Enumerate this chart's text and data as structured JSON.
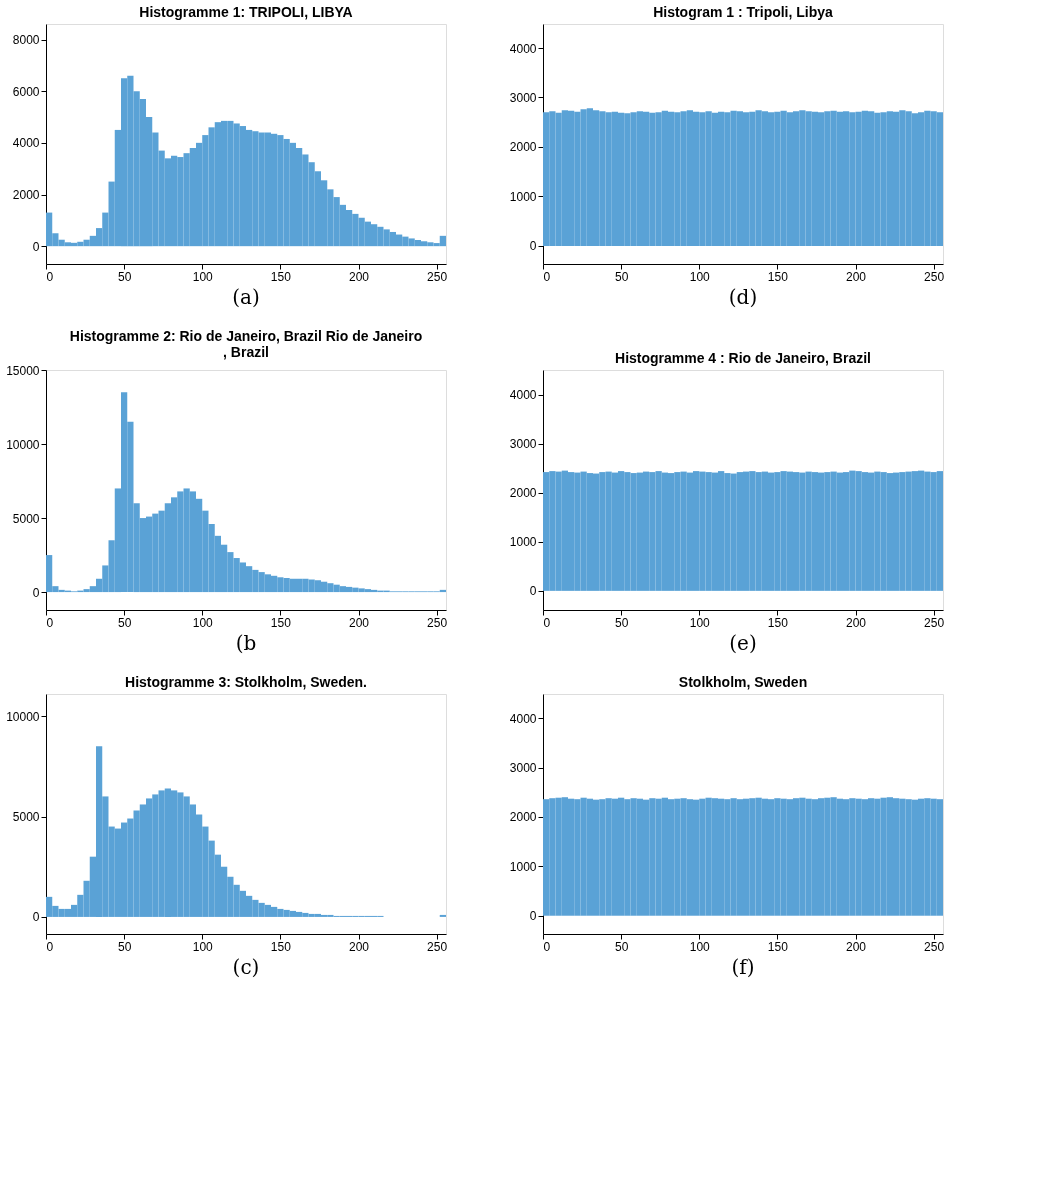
{
  "chart_data": [
    {
      "type": "histogram",
      "title": "Histogramme 1: TRIPOLI, LIBYA",
      "annotations": [
        "(a)"
      ],
      "color": "#5aa2d6",
      "xlim": [
        0,
        256
      ],
      "ylim": [
        -690,
        8600
      ],
      "xticks": [
        0,
        50,
        100,
        150,
        200,
        250
      ],
      "yticks": [
        0,
        2000,
        4000,
        6000,
        8000
      ],
      "grid": false,
      "bins": [
        0,
        4,
        8,
        12,
        16,
        20,
        24,
        28,
        32,
        36,
        40,
        44,
        48,
        52,
        56,
        60,
        64,
        68,
        72,
        76,
        80,
        84,
        88,
        92,
        96,
        100,
        104,
        108,
        112,
        116,
        120,
        124,
        128,
        132,
        136,
        140,
        144,
        148,
        152,
        156,
        160,
        164,
        168,
        172,
        176,
        180,
        184,
        188,
        192,
        196,
        200,
        204,
        208,
        212,
        216,
        220,
        224,
        228,
        232,
        236,
        240,
        244,
        248,
        252,
        256
      ],
      "values": [
        1300,
        500,
        250,
        150,
        130,
        170,
        250,
        400,
        700,
        1300,
        2500,
        4500,
        6500,
        6600,
        6000,
        5700,
        5000,
        4400,
        3700,
        3400,
        3500,
        3450,
        3600,
        3800,
        4000,
        4300,
        4600,
        4800,
        4850,
        4850,
        4750,
        4650,
        4500,
        4450,
        4400,
        4400,
        4350,
        4300,
        4150,
        4000,
        3800,
        3550,
        3250,
        2900,
        2550,
        2200,
        1900,
        1600,
        1400,
        1250,
        1100,
        950,
        850,
        750,
        650,
        550,
        450,
        370,
        300,
        240,
        190,
        150,
        120,
        400
      ]
    },
    {
      "type": "histogram",
      "title": "Histogram 1 : Tripoli, Libya",
      "annotations": [
        "(d)"
      ],
      "color": "#5aa2d6",
      "xlim": [
        0,
        256
      ],
      "ylim": [
        -365,
        4485
      ],
      "xticks": [
        0,
        50,
        100,
        150,
        200,
        250
      ],
      "yticks": [
        0,
        1000,
        2000,
        3000,
        4000
      ],
      "grid": false,
      "bins": [
        0,
        4,
        8,
        12,
        16,
        20,
        24,
        28,
        32,
        36,
        40,
        44,
        48,
        52,
        56,
        60,
        64,
        68,
        72,
        76,
        80,
        84,
        88,
        92,
        96,
        100,
        104,
        108,
        112,
        116,
        120,
        124,
        128,
        132,
        136,
        140,
        144,
        148,
        152,
        156,
        160,
        164,
        168,
        172,
        176,
        180,
        184,
        188,
        192,
        196,
        200,
        204,
        208,
        212,
        216,
        220,
        224,
        228,
        232,
        236,
        240,
        244,
        248,
        252,
        256
      ],
      "values": [
        2700,
        2720,
        2690,
        2740,
        2730,
        2710,
        2760,
        2780,
        2740,
        2720,
        2700,
        2710,
        2690,
        2680,
        2700,
        2720,
        2710,
        2690,
        2700,
        2730,
        2710,
        2700,
        2720,
        2740,
        2710,
        2700,
        2720,
        2690,
        2710,
        2700,
        2730,
        2720,
        2700,
        2710,
        2740,
        2720,
        2700,
        2710,
        2730,
        2700,
        2720,
        2740,
        2720,
        2710,
        2700,
        2720,
        2730,
        2710,
        2720,
        2700,
        2710,
        2730,
        2720,
        2690,
        2700,
        2720,
        2710,
        2740,
        2720,
        2680,
        2700,
        2730,
        2720,
        2700
      ]
    },
    {
      "type": "histogram",
      "title": "Histogramme 2: Rio de Janeiro, Brazil Rio de Janeiro\n, Brazil",
      "annotations": [
        "(b"
      ],
      "color": "#5aa2d6",
      "xlim": [
        0,
        256
      ],
      "ylim": [
        -1210,
        15000
      ],
      "xticks": [
        0,
        50,
        100,
        150,
        200,
        250
      ],
      "yticks": [
        0,
        5000,
        10000,
        15000
      ],
      "grid": false,
      "bins": [
        0,
        4,
        8,
        12,
        16,
        20,
        24,
        28,
        32,
        36,
        40,
        44,
        48,
        52,
        56,
        60,
        64,
        68,
        72,
        76,
        80,
        84,
        88,
        92,
        96,
        100,
        104,
        108,
        112,
        116,
        120,
        124,
        128,
        132,
        136,
        140,
        144,
        148,
        152,
        156,
        160,
        164,
        168,
        172,
        176,
        180,
        184,
        188,
        192,
        196,
        200,
        204,
        208,
        212,
        216,
        220,
        224,
        228,
        232,
        236,
        240,
        244,
        248,
        252,
        256
      ],
      "values": [
        2500,
        400,
        150,
        100,
        50,
        100,
        200,
        400,
        900,
        1800,
        3500,
        7000,
        13500,
        11500,
        6000,
        5000,
        5100,
        5300,
        5500,
        6000,
        6400,
        6800,
        7000,
        6800,
        6300,
        5500,
        4600,
        3800,
        3200,
        2700,
        2300,
        2000,
        1750,
        1500,
        1350,
        1200,
        1100,
        1000,
        950,
        900,
        900,
        900,
        850,
        800,
        700,
        600,
        500,
        400,
        350,
        300,
        250,
        200,
        150,
        100,
        100,
        50,
        50,
        50,
        50,
        50,
        50,
        50,
        50,
        150
      ]
    },
    {
      "type": "histogram",
      "title": "Histogramme 4 : Rio de Janeiro, Brazil",
      "annotations": [
        "(e)"
      ],
      "color": "#5aa2d6",
      "xlim": [
        0,
        256
      ],
      "ylim": [
        -390,
        4500
      ],
      "xticks": [
        0,
        50,
        100,
        150,
        200,
        250
      ],
      "yticks": [
        0,
        1000,
        2000,
        3000,
        4000
      ],
      "grid": false,
      "bins": [
        0,
        4,
        8,
        12,
        16,
        20,
        24,
        28,
        32,
        36,
        40,
        44,
        48,
        52,
        56,
        60,
        64,
        68,
        72,
        76,
        80,
        84,
        88,
        92,
        96,
        100,
        104,
        108,
        112,
        116,
        120,
        124,
        128,
        132,
        136,
        140,
        144,
        148,
        152,
        156,
        160,
        164,
        168,
        172,
        176,
        180,
        184,
        188,
        192,
        196,
        200,
        204,
        208,
        212,
        216,
        220,
        224,
        228,
        232,
        236,
        240,
        244,
        248,
        252,
        256
      ],
      "values": [
        2420,
        2440,
        2430,
        2450,
        2420,
        2410,
        2430,
        2400,
        2390,
        2420,
        2430,
        2410,
        2440,
        2420,
        2400,
        2410,
        2430,
        2420,
        2440,
        2410,
        2400,
        2420,
        2430,
        2410,
        2440,
        2430,
        2420,
        2410,
        2440,
        2400,
        2390,
        2420,
        2430,
        2440,
        2420,
        2430,
        2410,
        2420,
        2440,
        2430,
        2420,
        2410,
        2430,
        2420,
        2410,
        2420,
        2430,
        2410,
        2420,
        2450,
        2440,
        2420,
        2410,
        2430,
        2420,
        2400,
        2410,
        2420,
        2430,
        2440,
        2450,
        2430,
        2420,
        2440
      ]
    },
    {
      "type": "histogram",
      "title": "Histogramme 3: Stolkholm, Sweden.",
      "annotations": [
        "(c)"
      ],
      "color": "#5aa2d6",
      "xlim": [
        0,
        256
      ],
      "ylim": [
        -850,
        11100
      ],
      "xticks": [
        0,
        50,
        100,
        150,
        200,
        250
      ],
      "yticks": [
        0,
        5000,
        10000
      ],
      "grid": false,
      "bins": [
        0,
        4,
        8,
        12,
        16,
        20,
        24,
        28,
        32,
        36,
        40,
        44,
        48,
        52,
        56,
        60,
        64,
        68,
        72,
        76,
        80,
        84,
        88,
        92,
        96,
        100,
        104,
        108,
        112,
        116,
        120,
        124,
        128,
        132,
        136,
        140,
        144,
        148,
        152,
        156,
        160,
        164,
        168,
        172,
        176,
        180,
        184,
        188,
        192,
        196,
        200,
        204,
        208,
        212,
        216,
        220,
        224,
        228,
        232,
        236,
        240,
        244,
        248,
        252,
        256
      ],
      "values": [
        1000,
        550,
        400,
        400,
        600,
        1100,
        1800,
        3000,
        8500,
        6000,
        4500,
        4400,
        4700,
        4900,
        5300,
        5600,
        5900,
        6100,
        6300,
        6400,
        6300,
        6200,
        6000,
        5600,
        5100,
        4500,
        3800,
        3100,
        2500,
        2000,
        1600,
        1300,
        1050,
        850,
        700,
        600,
        500,
        400,
        350,
        300,
        250,
        200,
        150,
        150,
        100,
        100,
        50,
        50,
        50,
        50,
        50,
        50,
        50,
        50,
        0,
        0,
        0,
        0,
        0,
        0,
        0,
        0,
        0,
        100
      ]
    },
    {
      "type": "histogram",
      "title": "Stolkholm, Sweden",
      "annotations": [
        "(f)"
      ],
      "color": "#5aa2d6",
      "xlim": [
        0,
        256
      ],
      "ylim": [
        -370,
        4490
      ],
      "xticks": [
        0,
        50,
        100,
        150,
        200,
        250
      ],
      "yticks": [
        0,
        1000,
        2000,
        3000,
        4000
      ],
      "grid": false,
      "bins": [
        0,
        4,
        8,
        12,
        16,
        20,
        24,
        28,
        32,
        36,
        40,
        44,
        48,
        52,
        56,
        60,
        64,
        68,
        72,
        76,
        80,
        84,
        88,
        92,
        96,
        100,
        104,
        108,
        112,
        116,
        120,
        124,
        128,
        132,
        136,
        140,
        144,
        148,
        152,
        156,
        160,
        164,
        168,
        172,
        176,
        180,
        184,
        188,
        192,
        196,
        200,
        204,
        208,
        212,
        216,
        220,
        224,
        228,
        232,
        236,
        240,
        244,
        248,
        252,
        256
      ],
      "values": [
        2360,
        2380,
        2390,
        2400,
        2370,
        2360,
        2390,
        2370,
        2350,
        2360,
        2380,
        2370,
        2390,
        2360,
        2380,
        2370,
        2350,
        2380,
        2370,
        2390,
        2360,
        2370,
        2380,
        2360,
        2350,
        2370,
        2390,
        2380,
        2370,
        2360,
        2380,
        2360,
        2370,
        2380,
        2390,
        2370,
        2360,
        2380,
        2370,
        2360,
        2380,
        2390,
        2370,
        2360,
        2380,
        2390,
        2400,
        2370,
        2360,
        2380,
        2370,
        2360,
        2380,
        2370,
        2390,
        2400,
        2380,
        2370,
        2360,
        2350,
        2370,
        2380,
        2370,
        2360
      ]
    }
  ]
}
